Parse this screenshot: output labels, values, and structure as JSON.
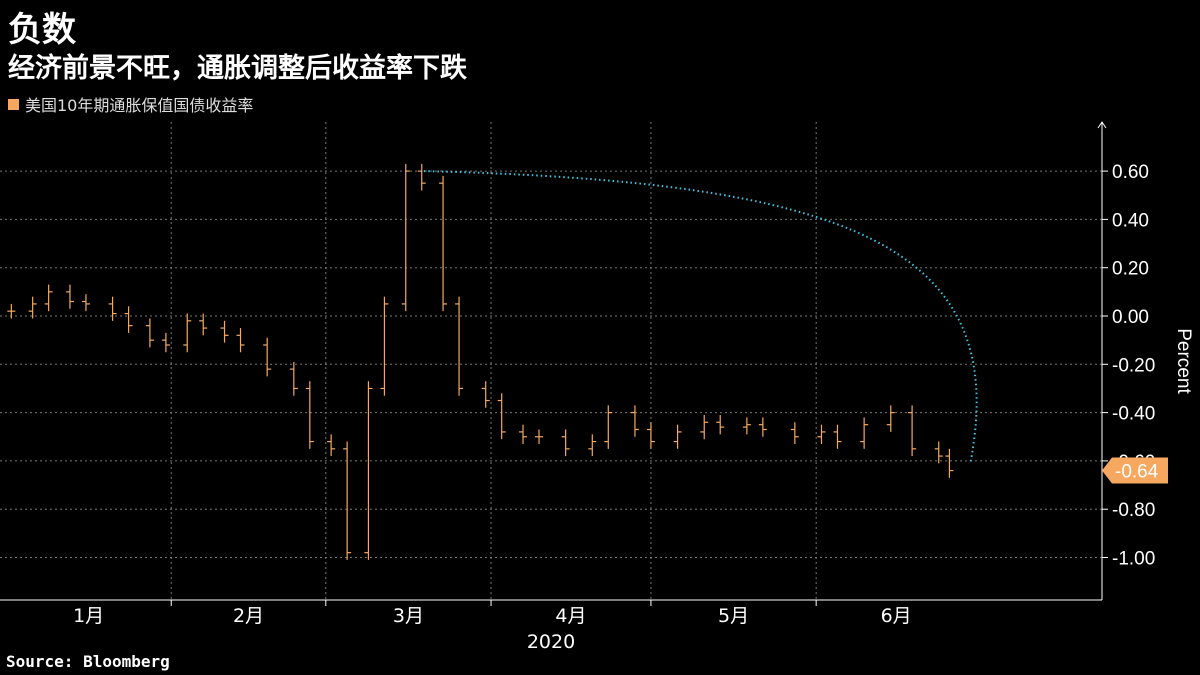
{
  "header": {
    "title": "负数",
    "subtitle": "经济前景不旺，通胀调整后收益率下跌"
  },
  "legend": {
    "label": "美国10年期通胀保值国债收益率",
    "color": "#f6a861"
  },
  "footer": {
    "source": "Source: Bloomberg"
  },
  "colors": {
    "series": "#f6a861",
    "annotation": "#3ec6e6",
    "grid": "#777777",
    "background": "#000000"
  },
  "chart_data": {
    "type": "line",
    "title": "负数",
    "subtitle": "经济前景不旺，通胀调整后收益率下跌",
    "ylabel": "Percent",
    "ylim": [
      -1.2,
      0.8
    ],
    "yticks": [
      -1.0,
      -0.8,
      -0.6,
      -0.4,
      -0.2,
      0.0,
      0.2,
      0.4,
      0.6
    ],
    "ytick_labels": [
      "-1.00",
      "-0.80",
      "-0.60",
      "-0.40",
      "-0.20",
      "0.00",
      "0.20",
      "0.40",
      "0.60"
    ],
    "xticks": [
      "1月",
      "2月",
      "3月",
      "4月",
      "5月",
      "6月"
    ],
    "xyear": "2020",
    "grid": true,
    "last_value_label": "-0.64",
    "series": [
      {
        "name": "美国10年期通胀保值国债收益率",
        "style": "ohlc-bars",
        "x": [
          "2020-01-02",
          "2020-01-06",
          "2020-01-09",
          "2020-01-13",
          "2020-01-16",
          "2020-01-21",
          "2020-01-24",
          "2020-01-28",
          "2020-01-31",
          "2020-02-04",
          "2020-02-07",
          "2020-02-11",
          "2020-02-14",
          "2020-02-19",
          "2020-02-24",
          "2020-02-27",
          "2020-03-02",
          "2020-03-05",
          "2020-03-09",
          "2020-03-12",
          "2020-03-16",
          "2020-03-19",
          "2020-03-23",
          "2020-03-26",
          "2020-03-31",
          "2020-04-03",
          "2020-04-07",
          "2020-04-10",
          "2020-04-15",
          "2020-04-20",
          "2020-04-23",
          "2020-04-28",
          "2020-05-01",
          "2020-05-06",
          "2020-05-11",
          "2020-05-14",
          "2020-05-19",
          "2020-05-22",
          "2020-05-28",
          "2020-06-02",
          "2020-06-05",
          "2020-06-10",
          "2020-06-15",
          "2020-06-19",
          "2020-06-24",
          "2020-06-26"
        ],
        "values": [
          0.02,
          0.05,
          0.1,
          0.06,
          0.05,
          0.01,
          -0.04,
          -0.1,
          -0.12,
          -0.02,
          -0.05,
          -0.08,
          -0.12,
          -0.22,
          -0.3,
          -0.52,
          -0.55,
          -0.98,
          -0.3,
          0.05,
          0.6,
          0.55,
          0.05,
          -0.3,
          -0.35,
          -0.48,
          -0.5,
          -0.5,
          -0.55,
          -0.52,
          -0.4,
          -0.47,
          -0.52,
          -0.48,
          -0.44,
          -0.46,
          -0.45,
          -0.47,
          -0.5,
          -0.48,
          -0.52,
          -0.45,
          -0.4,
          -0.55,
          -0.58,
          -0.64
        ]
      }
    ],
    "annotation": {
      "type": "dotted-arrow",
      "from_value": 0.6,
      "to_value": -0.64
    }
  }
}
